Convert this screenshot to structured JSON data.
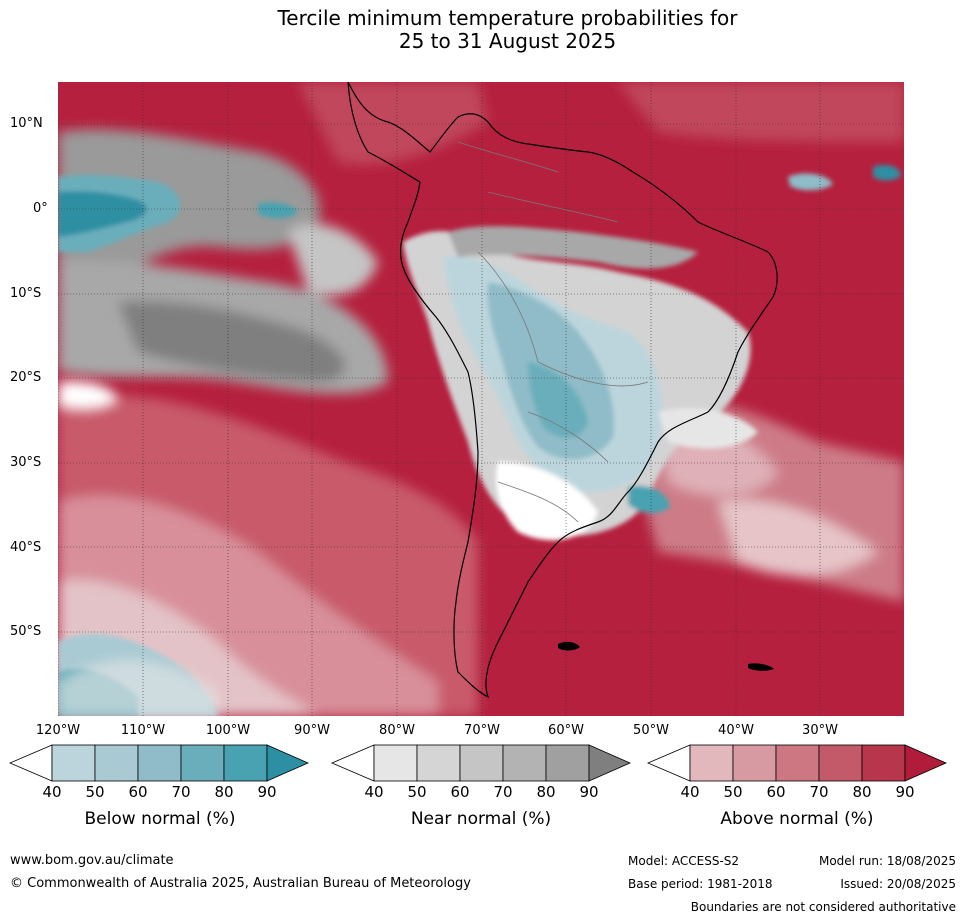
{
  "title": {
    "line1": "Tercile minimum temperature probabilities for",
    "line2": "25 to 31 August 2025"
  },
  "map": {
    "latitude_labels": [
      "10°N",
      "0°",
      "10°S",
      "20°S",
      "30°S",
      "40°S",
      "50°S"
    ],
    "longitude_labels": [
      "120°W",
      "110°W",
      "100°W",
      "90°W",
      "80°W",
      "70°W",
      "60°W",
      "50°W",
      "40°W",
      "30°W"
    ]
  },
  "legend": {
    "below": {
      "label": "Below normal (%)",
      "ticks": [
        "40",
        "50",
        "60",
        "70",
        "80",
        "90"
      ],
      "colors": [
        "#ffffff",
        "#bcd5dd",
        "#a9cad3",
        "#8fbcc8",
        "#6aaebb",
        "#49a2b1",
        "#2d8fa3"
      ]
    },
    "near": {
      "label": "Near normal (%)",
      "ticks": [
        "40",
        "50",
        "60",
        "70",
        "80",
        "90"
      ],
      "colors": [
        "#ffffff",
        "#e6e6e6",
        "#d5d5d5",
        "#c5c5c5",
        "#b3b3b3",
        "#a0a0a0",
        "#7f7f7f"
      ]
    },
    "above": {
      "label": "Above normal (%)",
      "ticks": [
        "40",
        "50",
        "60",
        "70",
        "80",
        "90"
      ],
      "colors": [
        "#ffffff",
        "#e3b8bd",
        "#d89aa2",
        "#cd7783",
        "#c35a69",
        "#b7364c",
        "#b01c3a"
      ]
    }
  },
  "footer": {
    "website": "www.bom.gov.au/climate",
    "copyright": "© Commonwealth of Australia 2025, Australian Bureau of Meteorology",
    "model": "Model: ACCESS-S2",
    "base_period": "Base period: 1981-2018",
    "model_run": "Model run: 18/08/2025",
    "issued": "Issued: 20/08/2025",
    "disclaimer": "Boundaries are not considered authoritative"
  }
}
